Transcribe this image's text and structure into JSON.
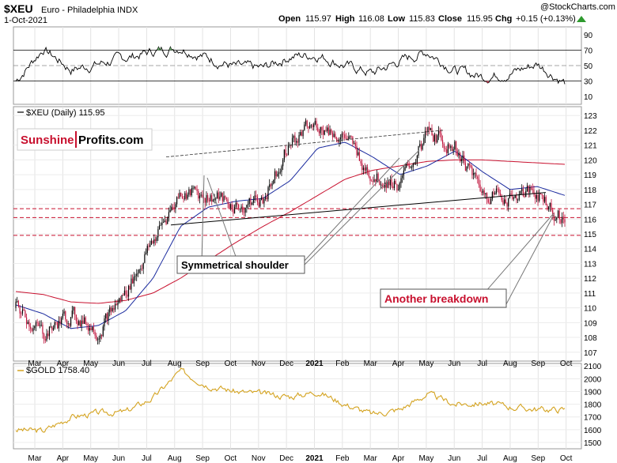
{
  "header": {
    "symbol": "$XEU",
    "name": "Euro - Philadelphia INDX",
    "date": "1-Oct-2021",
    "copyright": "@StockCharts.com",
    "open_label": "Open",
    "open_value": "115.97",
    "high_label": "High",
    "high_value": "116.08",
    "low_label": "Low",
    "low_value": "115.83",
    "close_label": "Close",
    "close_value": "115.95",
    "chg_label": "Chg",
    "chg_value": "+0.15 (+0.13%)"
  },
  "colors": {
    "candle_up": "#000000",
    "candle_down": "#c0143c",
    "ma_short": "#1a2a9e",
    "ma_long": "#c8102e",
    "gold_line": "#d4a320",
    "rsi_line": "#000000",
    "rsi_overbought_fill": "#4e9a4e",
    "rsi_oversold_fill": "#c8102e",
    "support_dashed": "#c8102e",
    "annotation_red": "#c8102e"
  },
  "rsi_panel": {
    "ticks": [
      "90",
      "70",
      "50",
      "30",
      "10"
    ]
  },
  "price_panel": {
    "legend": "$XEU (Daily) 115.95",
    "logo_part1": "Sunshine",
    "logo_part2": "Profits.com",
    "annotation_shoulder": "Symmetrical shoulder",
    "annotation_breakdown": "Another breakdown",
    "ticks": [
      "123",
      "122",
      "121",
      "120",
      "119",
      "118",
      "117",
      "116",
      "115",
      "114",
      "113",
      "112",
      "111",
      "110",
      "109",
      "108",
      "107"
    ],
    "support_levels": [
      116.1,
      114.9,
      116.7
    ]
  },
  "gold_panel": {
    "legend": "$GOLD 1758.40",
    "ticks": [
      "2100",
      "2000",
      "1900",
      "1800",
      "1700",
      "1600",
      "1500"
    ]
  },
  "x_axis": {
    "labels": [
      "Mar",
      "Apr",
      "May",
      "Jun",
      "Jul",
      "Aug",
      "Sep",
      "Oct",
      "Nov",
      "Dec",
      "2021",
      "Feb",
      "Mar",
      "Apr",
      "May",
      "Jun",
      "Jul",
      "Aug",
      "Sep",
      "Oct"
    ]
  },
  "chart_data": [
    {
      "type": "line",
      "title": "RSI",
      "ylim": [
        0,
        100
      ],
      "reference_lines": [
        70,
        50,
        30
      ],
      "dates": [
        "2020-02",
        "2020-03",
        "2020-04",
        "2020-05",
        "2020-06",
        "2020-07",
        "2020-08",
        "2020-09",
        "2020-10",
        "2020-11",
        "2020-12",
        "2021-01",
        "2021-02",
        "2021-03",
        "2021-04",
        "2021-05",
        "2021-06",
        "2021-07",
        "2021-08",
        "2021-09",
        "2021-10"
      ],
      "values": [
        30,
        72,
        45,
        52,
        60,
        68,
        74,
        60,
        48,
        46,
        62,
        64,
        50,
        40,
        56,
        68,
        44,
        36,
        40,
        52,
        28
      ]
    },
    {
      "type": "line",
      "title": "$XEU (Daily) 115.95",
      "ylim": [
        106.4,
        123.6
      ],
      "dates": [
        "2020-02",
        "2020-03",
        "2020-04",
        "2020-05",
        "2020-06",
        "2020-07",
        "2020-08",
        "2020-09",
        "2020-10",
        "2020-11",
        "2020-12",
        "2021-01",
        "2021-02",
        "2021-03",
        "2021-04",
        "2021-05",
        "2021-06",
        "2021-07",
        "2021-08",
        "2021-09",
        "2021-10"
      ],
      "series": [
        {
          "values": [
            110.0,
            108.2,
            109.5,
            108.5,
            111.0,
            114.5,
            117.8,
            117.6,
            116.8,
            117.4,
            121.2,
            122.4,
            121.5,
            119.0,
            118.3,
            121.8,
            121.0,
            117.8,
            117.6,
            117.8,
            115.9
          ]
        },
        {
          "values": [
            110.2,
            109.6,
            108.6,
            108.8,
            109.8,
            112.0,
            115.5,
            116.8,
            117.2,
            117.4,
            118.6,
            120.8,
            121.2,
            120.2,
            119.0,
            119.6,
            120.6,
            119.2,
            118.0,
            118.2,
            117.6
          ]
        },
        {
          "values": [
            111.1,
            110.9,
            110.4,
            110.3,
            110.5,
            111.0,
            112.0,
            113.2,
            114.4,
            115.5,
            116.5,
            117.6,
            118.7,
            119.3,
            119.6,
            119.9,
            120.0,
            120.0,
            119.9,
            119.8,
            119.7
          ]
        }
      ],
      "reference_lines": [
        116.1,
        114.9,
        116.7
      ]
    },
    {
      "type": "line",
      "title": "$GOLD 1758.40",
      "ylim": [
        1450,
        2120
      ],
      "dates": [
        "2020-02",
        "2020-03",
        "2020-04",
        "2020-05",
        "2020-06",
        "2020-07",
        "2020-08",
        "2020-09",
        "2020-10",
        "2020-11",
        "2020-12",
        "2021-01",
        "2021-02",
        "2021-03",
        "2021-04",
        "2021-05",
        "2021-06",
        "2021-07",
        "2021-08",
        "2021-09",
        "2021-10"
      ],
      "values": [
        1600,
        1590,
        1700,
        1730,
        1740,
        1850,
        2060,
        1950,
        1900,
        1880,
        1860,
        1900,
        1800,
        1720,
        1760,
        1880,
        1800,
        1810,
        1780,
        1760,
        1758
      ]
    }
  ]
}
